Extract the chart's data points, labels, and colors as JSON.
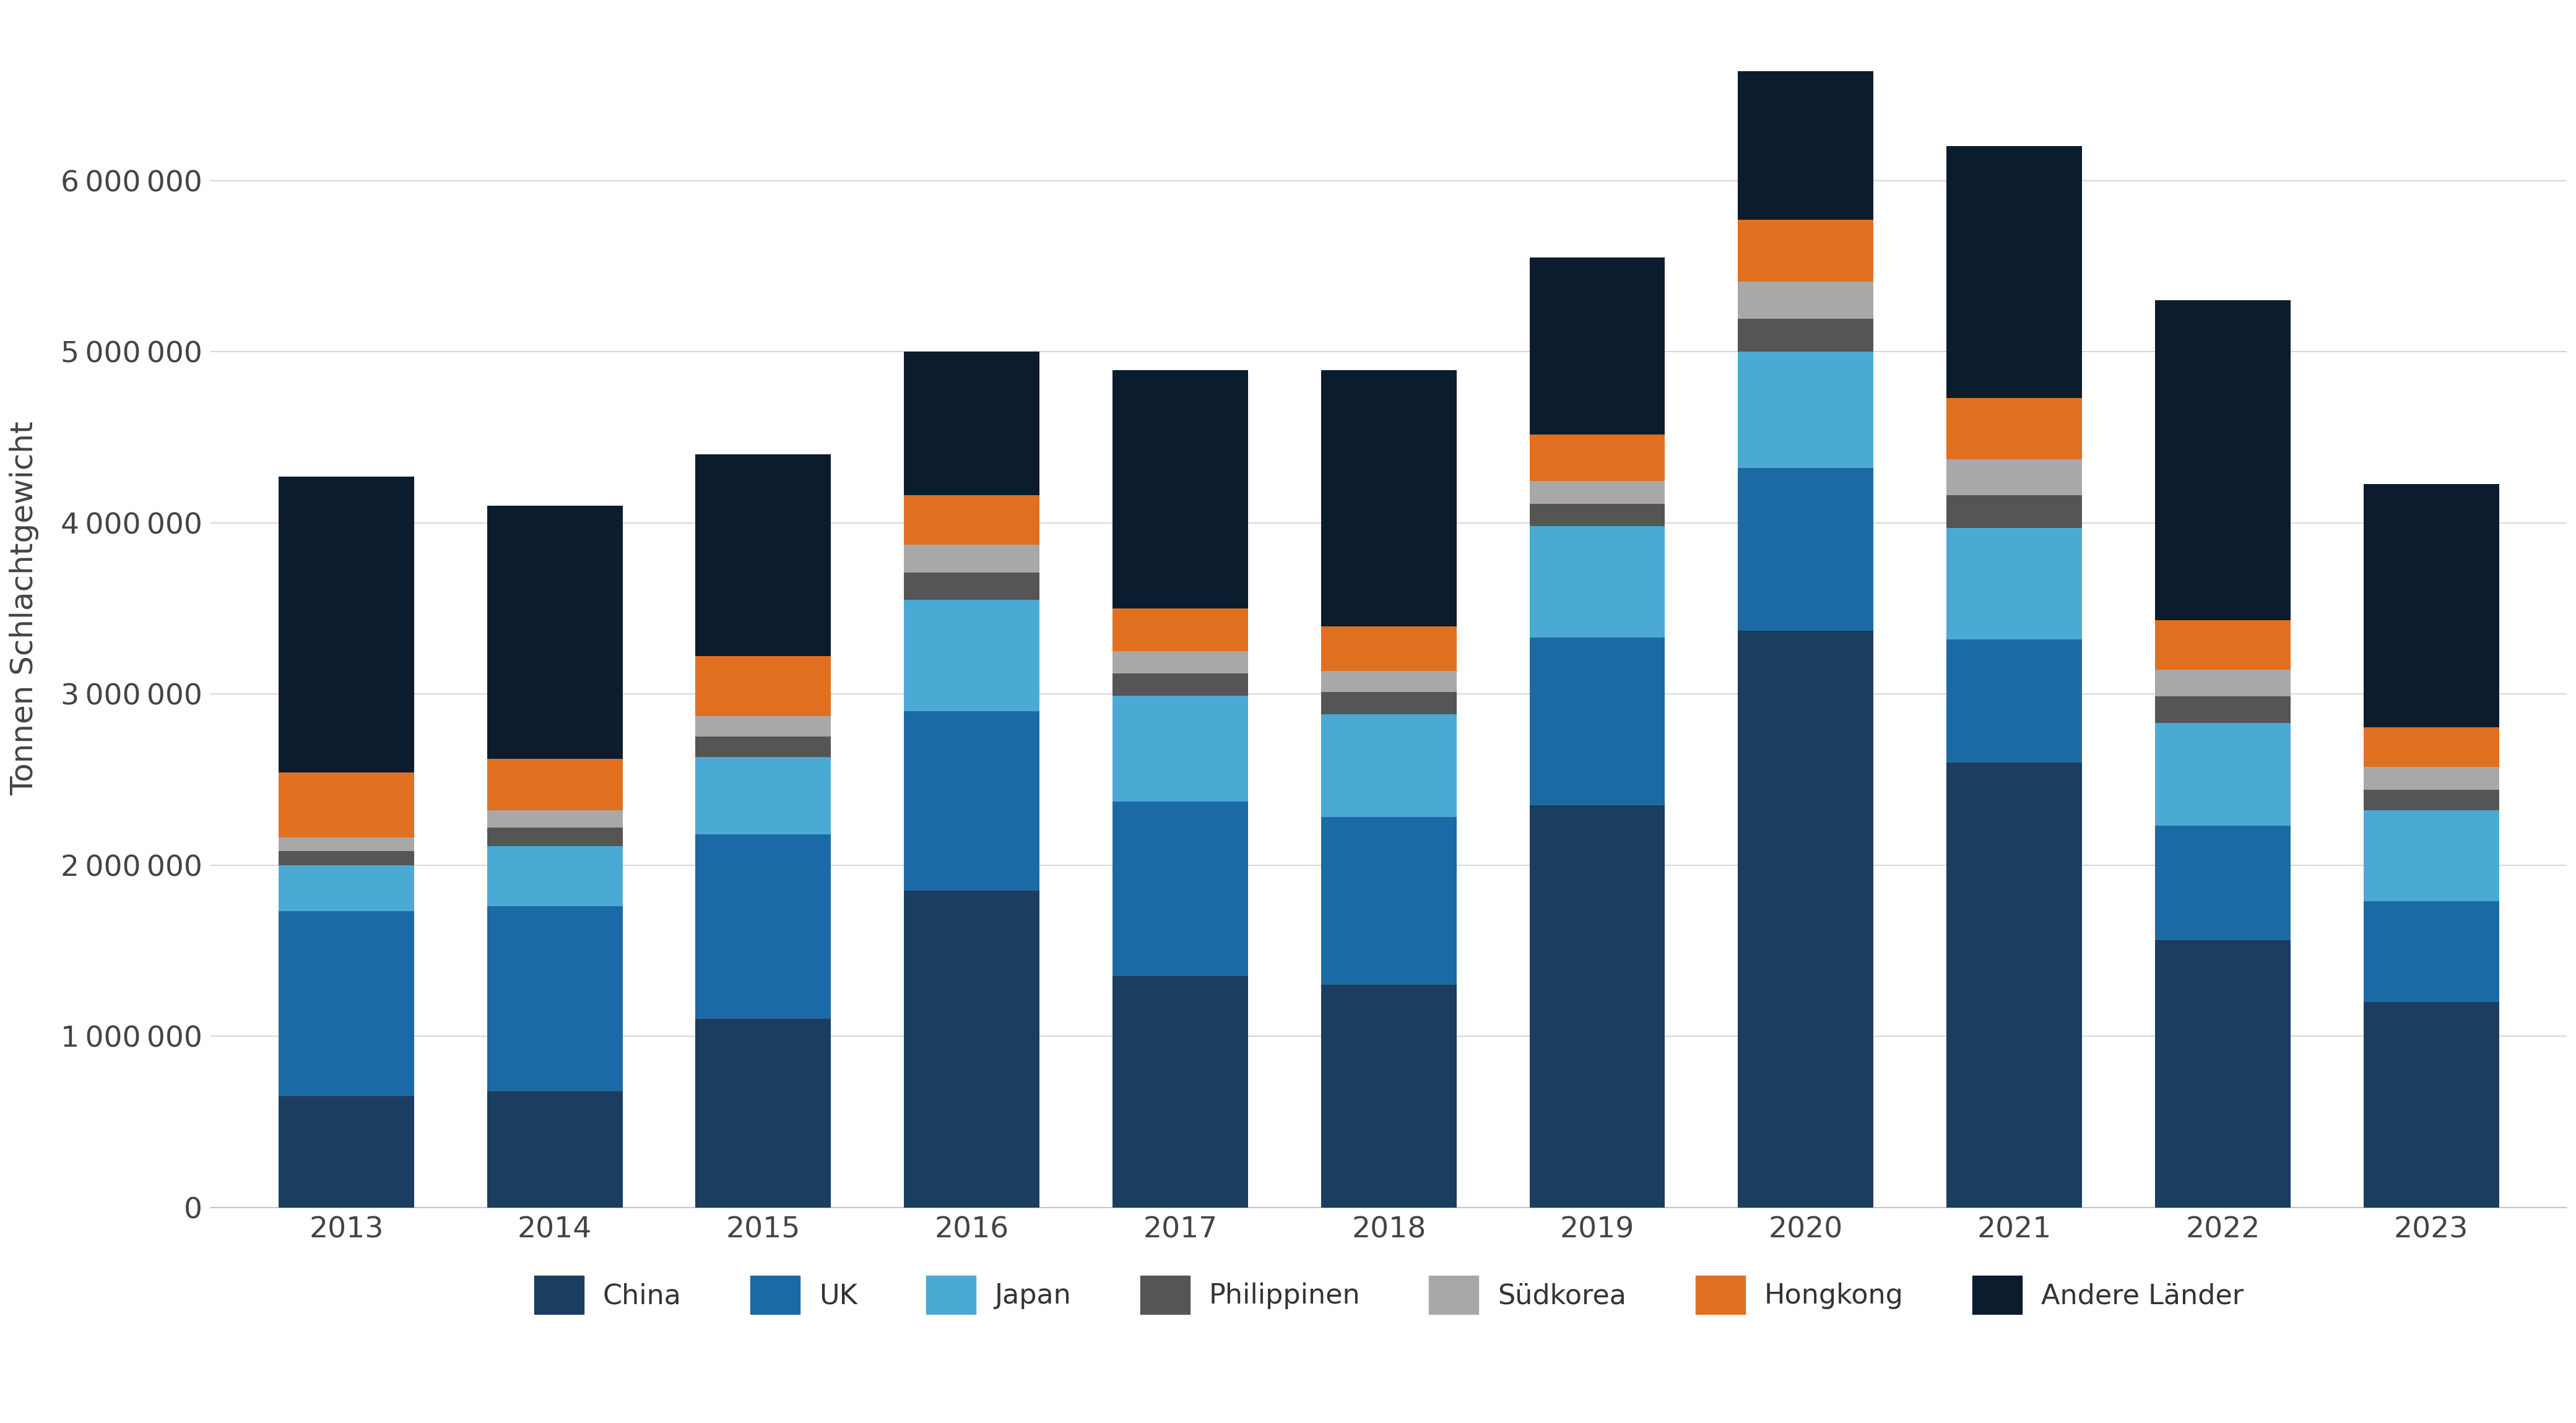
{
  "years": [
    2013,
    2014,
    2015,
    2016,
    2017,
    2018,
    2019,
    2020,
    2021,
    2022,
    2023
  ],
  "series": {
    "China": [
      650000,
      680000,
      1100000,
      1850000,
      1350000,
      1300000,
      2350000,
      3370000,
      2600000,
      1560000,
      1200000
    ],
    "UK": [
      1080000,
      1080000,
      1080000,
      1050000,
      1020000,
      980000,
      980000,
      950000,
      720000,
      670000,
      590000
    ],
    "Japan": [
      270000,
      350000,
      450000,
      650000,
      620000,
      600000,
      650000,
      680000,
      650000,
      600000,
      530000
    ],
    "Philippinen": [
      80000,
      110000,
      120000,
      160000,
      130000,
      130000,
      130000,
      190000,
      190000,
      155000,
      120000
    ],
    "Südkorea": [
      80000,
      100000,
      120000,
      160000,
      130000,
      125000,
      135000,
      220000,
      210000,
      155000,
      135000
    ],
    "Hongkong": [
      380000,
      300000,
      350000,
      290000,
      250000,
      260000,
      270000,
      360000,
      360000,
      290000,
      230000
    ],
    "Andere Länder": [
      1730000,
      1480000,
      1180000,
      840000,
      1390000,
      1495000,
      1035000,
      870000,
      1470000,
      1870000,
      1420000
    ]
  },
  "colors": {
    "China": "#1b3d5f",
    "UK": "#1c6aa5",
    "Japan": "#4aaad4",
    "Philippinen": "#555555",
    "Südkorea": "#a8a8a8",
    "Hongkong": "#e07020",
    "Andere Länder": "#0b1c2e"
  },
  "ylabel": "Tonnen Schlachtgewicht",
  "ylim": [
    0,
    7000000
  ],
  "yticks": [
    0,
    1000000,
    2000000,
    3000000,
    4000000,
    5000000,
    6000000
  ],
  "background_color": "#ffffff",
  "grid_color": "#d0d0d0",
  "bar_width": 0.65,
  "legend_order": [
    "China",
    "UK",
    "Japan",
    "Philippinen",
    "Südkorea",
    "Hongkong",
    "Andere Länder"
  ]
}
